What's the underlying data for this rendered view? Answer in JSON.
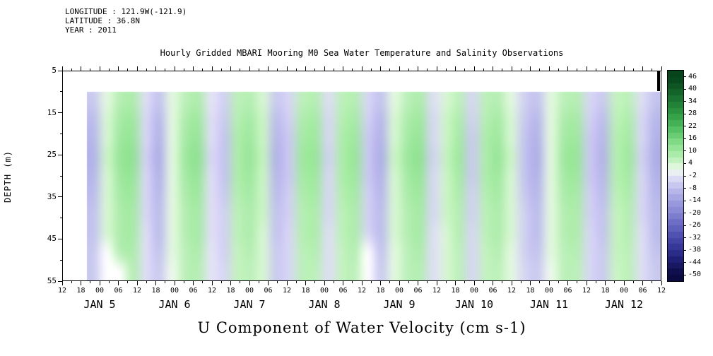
{
  "meta": {
    "longitude": "LONGITUDE : 121.9W(-121.9)",
    "latitude": "LATITUDE : 36.8N",
    "year": "YEAR : 2011"
  },
  "chart_data": {
    "type": "heatmap",
    "title": "Hourly Gridded MBARI Mooring M0 Sea Water Temperature and Salinity Observations",
    "xlabel": "U Component of Water Velocity (cm s-1)",
    "ylabel": "DEPTH (m)",
    "y_ticks": [
      "5",
      "15",
      "25",
      "35",
      "45",
      "55"
    ],
    "depth_range": [
      5,
      55
    ],
    "data_top_depth": 10,
    "axis_total_hours": 192,
    "data_start_hour": 8,
    "x_hour_labels": [
      "12",
      "18",
      "00",
      "06",
      "12",
      "18",
      "00",
      "06",
      "12",
      "18",
      "00",
      "06",
      "12",
      "18",
      "00",
      "06",
      "12",
      "18",
      "00",
      "06",
      "12",
      "18",
      "00",
      "06",
      "12",
      "18",
      "00",
      "06",
      "12",
      "18",
      "00",
      "06",
      "12"
    ],
    "x_date_labels": [
      {
        "label": "JAN 5",
        "tick_index": 2
      },
      {
        "label": "JAN 6",
        "tick_index": 6
      },
      {
        "label": "JAN 7",
        "tick_index": 10
      },
      {
        "label": "JAN 8",
        "tick_index": 14
      },
      {
        "label": "JAN 9",
        "tick_index": 18
      },
      {
        "label": "JAN 10",
        "tick_index": 22
      },
      {
        "label": "JAN 11",
        "tick_index": 26
      },
      {
        "label": "JAN 12",
        "tick_index": 30
      }
    ],
    "colorbar": {
      "ticks": [
        "46",
        "40",
        "34",
        "28",
        "22",
        "16",
        "10",
        "4",
        "-2",
        "-8",
        "-14",
        "-20",
        "-26",
        "-32",
        "-38",
        "-44",
        "-50"
      ],
      "bar_top_value": 49,
      "bar_bottom_value": -53,
      "stops": [
        {
          "v": 46,
          "c": "#07431b"
        },
        {
          "v": 40,
          "c": "#0f5c26"
        },
        {
          "v": 34,
          "c": "#1d7a33"
        },
        {
          "v": 28,
          "c": "#2f9a44"
        },
        {
          "v": 22,
          "c": "#4cb95c"
        },
        {
          "v": 16,
          "c": "#74d47c"
        },
        {
          "v": 10,
          "c": "#a0e8a0"
        },
        {
          "v": 4,
          "c": "#ccf4c8"
        },
        {
          "v": 1,
          "c": "#f0faee"
        },
        {
          "v": -2,
          "c": "#e4e4f6"
        },
        {
          "v": -8,
          "c": "#bdbdec"
        },
        {
          "v": -14,
          "c": "#9f9fe0"
        },
        {
          "v": -20,
          "c": "#8484d2"
        },
        {
          "v": -26,
          "c": "#6767c2"
        },
        {
          "v": -32,
          "c": "#4a4aad"
        },
        {
          "v": -38,
          "c": "#303091"
        },
        {
          "v": -44,
          "c": "#1b1b6d"
        },
        {
          "v": -50,
          "c": "#0b0b42"
        }
      ]
    },
    "depths": [
      10,
      15,
      20,
      25,
      30,
      35,
      40,
      45,
      50,
      55
    ],
    "grid": [
      [
        -6,
        2,
        7,
        8,
        -3,
        -7,
        2,
        6,
        8,
        -2,
        -5,
        6,
        7,
        3,
        -6,
        -4,
        6,
        7,
        -3,
        6,
        7,
        -4,
        -7,
        2,
        6,
        8,
        -3,
        3,
        6,
        -4,
        6,
        7,
        2,
        -5,
        -7,
        2,
        6,
        7,
        -4,
        -6,
        5,
        6,
        -3,
        -7
      ],
      [
        -8,
        3,
        9,
        10,
        -4,
        -9,
        2,
        8,
        10,
        -3,
        -6,
        7,
        9,
        4,
        -8,
        -5,
        8,
        9,
        -4,
        7,
        9,
        -5,
        -9,
        3,
        8,
        10,
        -4,
        4,
        8,
        -5,
        7,
        9,
        3,
        -6,
        -9,
        2,
        8,
        9,
        -5,
        -8,
        6,
        8,
        -4,
        -9
      ],
      [
        -9,
        3,
        10,
        11,
        -4,
        -10,
        2,
        9,
        11,
        -3,
        -7,
        8,
        10,
        4,
        -9,
        -6,
        9,
        10,
        -4,
        8,
        10,
        -6,
        -10,
        3,
        9,
        11,
        -4,
        4,
        9,
        -6,
        8,
        10,
        3,
        -7,
        -10,
        2,
        9,
        10,
        -6,
        -9,
        7,
        9,
        -4,
        -10
      ],
      [
        -10,
        4,
        11,
        12,
        -5,
        -11,
        2,
        10,
        12,
        -4,
        -7,
        8,
        11,
        5,
        -10,
        -6,
        10,
        11,
        -5,
        8,
        11,
        -6,
        -11,
        4,
        10,
        12,
        -5,
        5,
        10,
        -6,
        8,
        11,
        4,
        -7,
        -11,
        2,
        10,
        11,
        -6,
        -10,
        7,
        10,
        -5,
        -11
      ],
      [
        -9,
        3,
        10,
        11,
        -4,
        -10,
        2,
        9,
        11,
        -3,
        -7,
        8,
        10,
        4,
        -9,
        -6,
        9,
        10,
        -4,
        8,
        10,
        -6,
        -10,
        3,
        9,
        11,
        -4,
        4,
        9,
        -6,
        8,
        10,
        3,
        -7,
        -10,
        2,
        9,
        10,
        -6,
        -9,
        7,
        9,
        -4,
        -10
      ],
      [
        -8,
        3,
        9,
        10,
        -4,
        -9,
        2,
        8,
        10,
        -3,
        -6,
        7,
        9,
        4,
        -8,
        -5,
        8,
        9,
        -4,
        7,
        9,
        -5,
        -9,
        3,
        8,
        10,
        -4,
        4,
        8,
        -5,
        7,
        9,
        3,
        -6,
        -9,
        2,
        8,
        9,
        -5,
        -8,
        6,
        8,
        -4,
        -9
      ],
      [
        -7,
        3,
        8,
        9,
        -4,
        -8,
        2,
        7,
        9,
        -3,
        -5,
        6,
        8,
        4,
        -7,
        -5,
        7,
        8,
        -4,
        6,
        8,
        -5,
        -8,
        3,
        7,
        9,
        -4,
        4,
        7,
        -5,
        6,
        8,
        3,
        -5,
        -8,
        2,
        7,
        8,
        -5,
        -7,
        5,
        7,
        -4,
        -8
      ],
      [
        -7,
        3,
        8,
        9,
        -3,
        -8,
        2,
        7,
        9,
        -3,
        -5,
        6,
        8,
        3,
        -7,
        -4,
        7,
        8,
        -3,
        6,
        8,
        -4,
        -8,
        3,
        7,
        9,
        -3,
        3,
        7,
        -4,
        6,
        8,
        3,
        -5,
        -8,
        2,
        7,
        8,
        -4,
        -7,
        5,
        7,
        -3,
        -8
      ],
      [
        -6,
        null,
        7,
        8,
        -3,
        -7,
        2,
        6,
        8,
        -2,
        -5,
        5,
        7,
        3,
        -6,
        -4,
        6,
        7,
        -3,
        5,
        7,
        null,
        -7,
        2,
        6,
        8,
        -3,
        3,
        6,
        -4,
        5,
        7,
        2,
        -5,
        -7,
        2,
        6,
        7,
        -4,
        -6,
        5,
        6,
        -3,
        -7
      ],
      [
        -6,
        null,
        null,
        7,
        -3,
        -6,
        1,
        6,
        7,
        -2,
        -4,
        5,
        6,
        3,
        -6,
        -4,
        6,
        6,
        -3,
        5,
        6,
        null,
        -6,
        2,
        6,
        7,
        -3,
        3,
        6,
        -4,
        5,
        6,
        2,
        -4,
        -6,
        1,
        6,
        6,
        -4,
        -6,
        4,
        6,
        -3,
        -6
      ]
    ]
  }
}
